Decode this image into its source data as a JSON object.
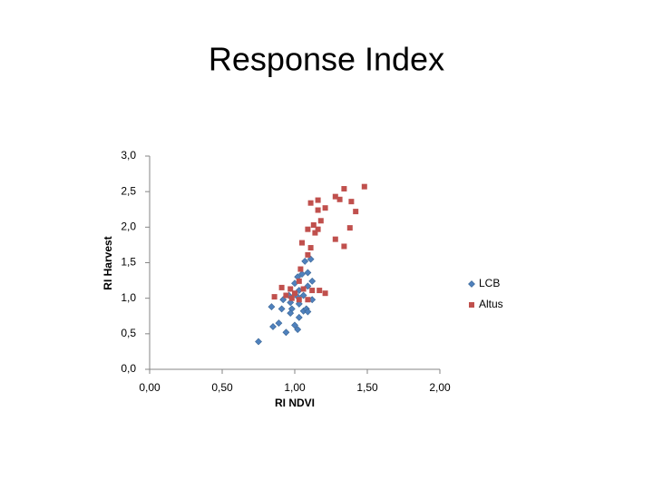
{
  "chart_data": {
    "type": "scatter",
    "title": "Response Index",
    "xlabel": "RI NDVI",
    "ylabel": "RI Harvest",
    "xlim": [
      0,
      2
    ],
    "ylim": [
      0,
      3
    ],
    "xticks": [
      {
        "value": 0,
        "label": "0,00"
      },
      {
        "value": 0.5,
        "label": "0,50"
      },
      {
        "value": 1,
        "label": "1,00"
      },
      {
        "value": 1.5,
        "label": "1,50"
      },
      {
        "value": 2,
        "label": "2,00"
      }
    ],
    "yticks": [
      {
        "value": 0,
        "label": "0,0"
      },
      {
        "value": 0.5,
        "label": "0,5"
      },
      {
        "value": 1,
        "label": "1,0"
      },
      {
        "value": 1.5,
        "label": "1,5"
      },
      {
        "value": 2,
        "label": "2,0"
      },
      {
        "value": 2.5,
        "label": "2,5"
      },
      {
        "value": 3,
        "label": "3,0"
      }
    ],
    "legend": "right",
    "series": [
      {
        "name": "LCB",
        "color": "#4f81bd",
        "marker": "diamond",
        "x": [
          0.75,
          0.94,
          0.85,
          0.89,
          1.0,
          1.02,
          1.03,
          1.06,
          1.08,
          1.03,
          0.98,
          0.91,
          0.84,
          0.97,
          1.06,
          1.09,
          1.12,
          1.02,
          1.05,
          1.09,
          1.11,
          1.0,
          0.96,
          0.92,
          1.03,
          1.12,
          0.97,
          1.02,
          1.07,
          1.09
        ],
        "values": [
          0.39,
          0.52,
          0.6,
          0.65,
          0.62,
          0.56,
          0.73,
          0.82,
          0.85,
          0.92,
          0.85,
          0.85,
          0.88,
          0.94,
          1.04,
          1.17,
          1.24,
          1.3,
          1.34,
          1.36,
          1.55,
          1.21,
          1.04,
          0.98,
          1.11,
          0.98,
          0.79,
          1.02,
          1.52,
          0.81
        ]
      },
      {
        "name": "Altus",
        "color": "#c0504d",
        "marker": "square",
        "x": [
          1.48,
          1.34,
          1.28,
          1.31,
          1.39,
          1.42,
          1.16,
          1.11,
          1.21,
          1.16,
          1.18,
          1.13,
          1.09,
          1.14,
          1.16,
          1.38,
          1.28,
          1.34,
          1.05,
          1.11,
          1.09,
          1.04,
          1.03,
          0.97,
          0.91,
          0.86,
          0.94,
          1.0,
          1.06,
          1.12,
          1.17,
          1.21,
          1.03,
          0.98,
          1.09
        ],
        "values": [
          2.57,
          2.54,
          2.43,
          2.39,
          2.36,
          2.22,
          2.38,
          2.34,
          2.27,
          2.24,
          2.09,
          2.03,
          1.97,
          1.92,
          1.97,
          1.99,
          1.83,
          1.73,
          1.78,
          1.71,
          1.61,
          1.41,
          1.24,
          1.13,
          1.15,
          1.02,
          1.04,
          1.07,
          1.13,
          1.11,
          1.11,
          1.07,
          0.98,
          1.0,
          0.98
        ]
      }
    ]
  }
}
